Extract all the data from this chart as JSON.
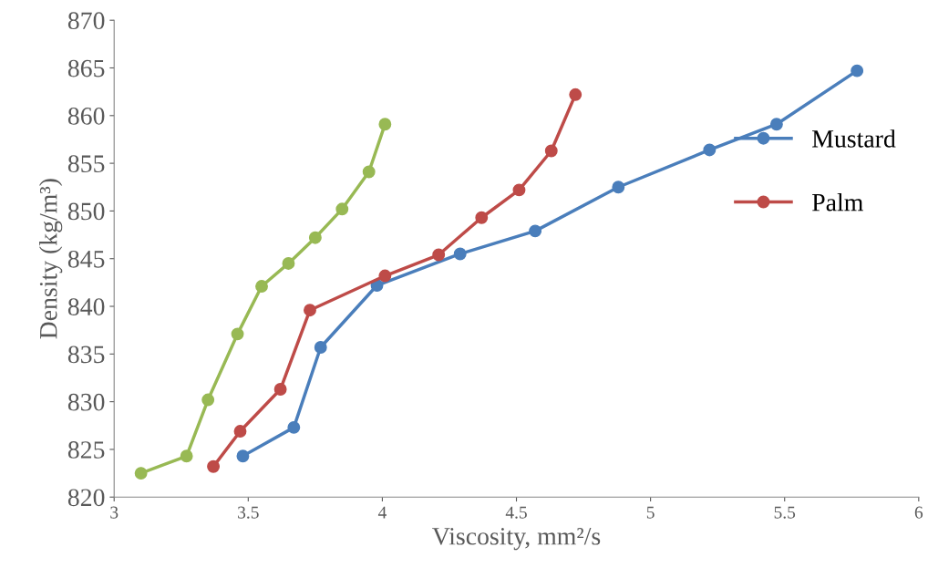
{
  "chart_data": {
    "type": "line",
    "xlabel": "Viscosity, mm²/s",
    "ylabel": "Density (kg/m³)",
    "xlim": [
      3,
      6
    ],
    "xticks": [
      3,
      3.5,
      4,
      4.5,
      5,
      5.5,
      6
    ],
    "ylim": [
      820,
      870
    ],
    "yticks": [
      820,
      825,
      830,
      835,
      840,
      845,
      850,
      855,
      860,
      865,
      870
    ],
    "marker": "circle",
    "line_style": "solid",
    "grid": false,
    "legend": "right",
    "series": [
      {
        "name": "Mustard",
        "color": "#4a7ebb",
        "x": [
          3.48,
          3.67,
          3.77,
          3.98,
          4.29,
          4.57,
          4.88,
          5.22,
          5.47,
          5.77
        ],
        "values": [
          824.3,
          827.3,
          835.7,
          842.2,
          845.5,
          847.9,
          852.5,
          856.4,
          859.1,
          864.7
        ]
      },
      {
        "name": "Palm",
        "color": "#be4b48",
        "x": [
          3.37,
          3.47,
          3.62,
          3.73,
          4.01,
          4.21,
          4.37,
          4.51,
          4.63,
          4.72
        ],
        "values": [
          823.2,
          826.9,
          831.3,
          839.6,
          843.2,
          845.4,
          849.3,
          852.2,
          856.3,
          862.2
        ]
      },
      {
        "color": "#98b954",
        "x": [
          3.1,
          3.27,
          3.35,
          3.46,
          3.55,
          3.65,
          3.75,
          3.85,
          3.95,
          4.01
        ],
        "values": [
          822.5,
          824.3,
          830.2,
          837.1,
          842.1,
          844.5,
          847.2,
          850.2,
          854.1,
          859.1
        ]
      }
    ]
  }
}
